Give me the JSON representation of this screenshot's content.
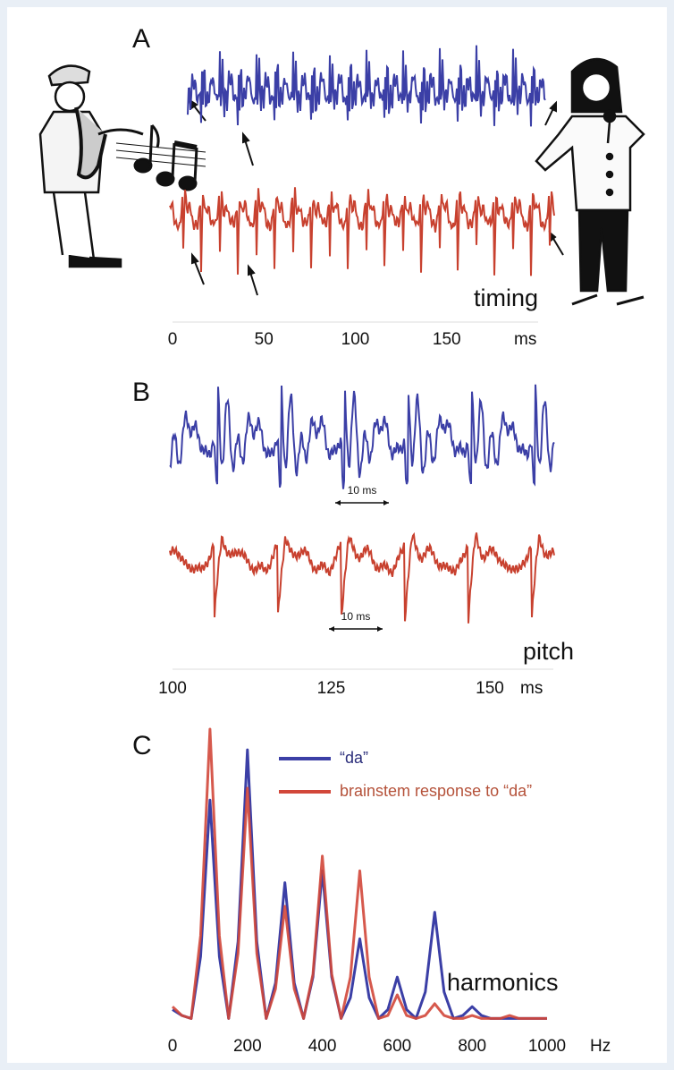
{
  "chart_data": [
    {
      "type": "waveform",
      "panel_label": "A",
      "annotation": "timing",
      "xlim": [
        0,
        200
      ],
      "xticks": [
        0,
        50,
        100,
        150
      ],
      "x_unit": "ms",
      "series": [
        {
          "color": "#3b3fa6"
        },
        {
          "color": "#c8412f"
        }
      ]
    },
    {
      "type": "waveform",
      "panel_label": "B",
      "annotation": "pitch",
      "xlim": [
        100,
        160
      ],
      "xticks": [
        100,
        125,
        150
      ],
      "x_unit": "ms",
      "interval_labels": [
        "10 ms",
        "10 ms"
      ],
      "series": [
        {
          "color": "#3b3fa6"
        },
        {
          "color": "#c8412f"
        }
      ]
    },
    {
      "type": "line",
      "panel_label": "C",
      "annotation": "harmonics",
      "x": [
        0,
        25,
        50,
        75,
        100,
        125,
        150,
        175,
        200,
        225,
        250,
        275,
        300,
        325,
        350,
        375,
        400,
        425,
        450,
        475,
        500,
        525,
        550,
        575,
        600,
        625,
        650,
        675,
        700,
        725,
        750,
        775,
        800,
        825,
        850,
        875,
        900,
        925,
        950,
        975,
        1000
      ],
      "xlim": [
        0,
        1000
      ],
      "xticks": [
        0,
        200,
        400,
        600,
        800,
        1000
      ],
      "x_unit": "Hz",
      "ylim": [
        0,
        100
      ],
      "series": [
        {
          "name": "“da”",
          "color": "#3b3fa6",
          "values": [
            5,
            3,
            2,
            23,
            76,
            23,
            2,
            28,
            93,
            28,
            2,
            14,
            48,
            14,
            2,
            16,
            52,
            16,
            2,
            9,
            29,
            9,
            2,
            5,
            16,
            5,
            2,
            11,
            38,
            11,
            2,
            3,
            6,
            3,
            2,
            2,
            2,
            2,
            2,
            2,
            2
          ]
        },
        {
          "name": "brainstem response to “da”",
          "color": "#d2473a",
          "values": [
            6,
            3,
            2,
            30,
            100,
            30,
            2,
            24,
            80,
            24,
            2,
            12,
            40,
            12,
            2,
            17,
            57,
            17,
            2,
            16,
            52,
            16,
            2,
            3,
            10,
            3,
            2,
            3,
            7,
            3,
            2,
            2,
            3,
            2,
            2,
            2,
            3,
            2,
            2,
            2,
            2
          ]
        }
      ]
    }
  ]
}
